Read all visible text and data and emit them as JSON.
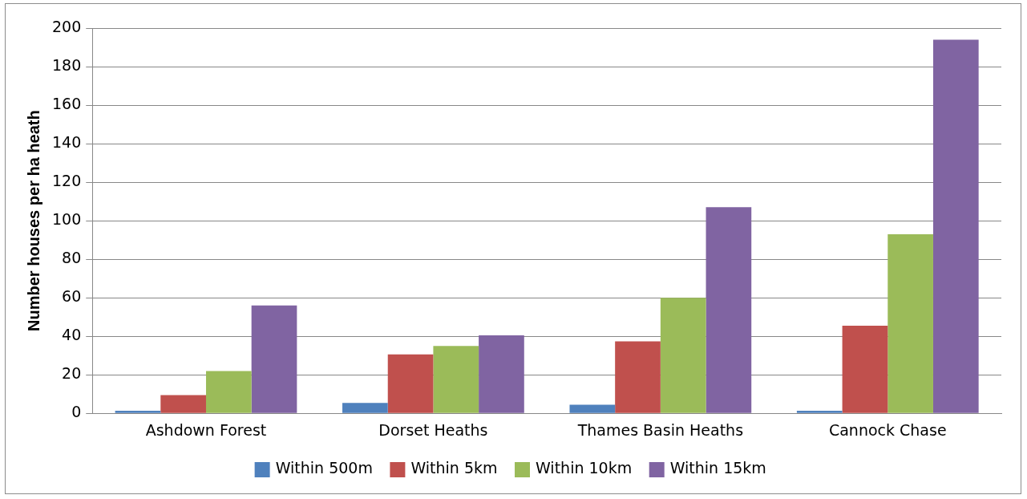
{
  "chart_data": {
    "type": "bar",
    "ylabel": "Number houses per ha heath",
    "categories": [
      "Ashdown Forest",
      "Dorset Heaths",
      "Thames Basin Heaths",
      "Cannock Chase"
    ],
    "series": [
      {
        "name": "Within 500m",
        "color": "#4f81bd",
        "values": [
          1.3,
          5.4,
          4.5,
          1.3
        ]
      },
      {
        "name": "Within 5km",
        "color": "#c0504d",
        "values": [
          9.5,
          30.6,
          37.4,
          45.5
        ]
      },
      {
        "name": "Within 10km",
        "color": "#9bbb59",
        "values": [
          22,
          35,
          60,
          93
        ]
      },
      {
        "name": "Within 15km",
        "color": "#8064a2",
        "values": [
          56,
          40.5,
          107,
          194
        ]
      }
    ],
    "ylim": [
      0,
      200
    ],
    "yticks": [
      0,
      20,
      40,
      60,
      80,
      100,
      120,
      140,
      160,
      180,
      200
    ],
    "grid": "y",
    "legend": "bottom"
  }
}
